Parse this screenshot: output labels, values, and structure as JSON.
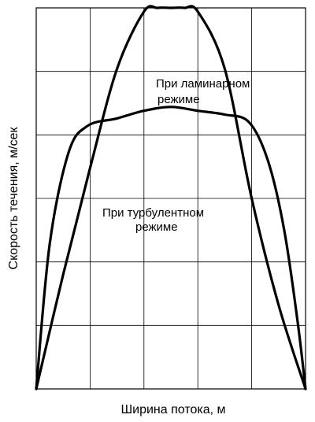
{
  "chart_data": {
    "type": "line",
    "title": "",
    "xlabel": "Ширина потока, м",
    "ylabel": "Скорость течения, м/сек",
    "xlim": [
      0,
      1
    ],
    "ylim": [
      0,
      1
    ],
    "grid": true,
    "x_tick_labels": [],
    "y_tick_labels": [],
    "series": [
      {
        "name": "При ламинарном режиме",
        "label_lines": [
          "При ламинарном",
          "режиме"
        ],
        "x": [
          0,
          0.1,
          0.2,
          0.3,
          0.4,
          0.45,
          0.5,
          0.55,
          0.6,
          0.7,
          0.8,
          0.9,
          1.0
        ],
        "y": [
          0,
          0.3,
          0.58,
          0.84,
          0.99,
          1.0,
          1.0,
          1.0,
          0.99,
          0.84,
          0.5,
          0.22,
          0
        ]
      },
      {
        "name": "При турбулентном режиме",
        "label_lines": [
          "При турбулентном",
          "режиме"
        ],
        "x": [
          0,
          0.05,
          0.12,
          0.19,
          0.3,
          0.4,
          0.5,
          0.6,
          0.7,
          0.79,
          0.86,
          0.92,
          0.97,
          1.0
        ],
        "y": [
          0,
          0.38,
          0.62,
          0.69,
          0.71,
          0.73,
          0.74,
          0.73,
          0.72,
          0.7,
          0.6,
          0.42,
          0.18,
          0
        ]
      }
    ]
  }
}
